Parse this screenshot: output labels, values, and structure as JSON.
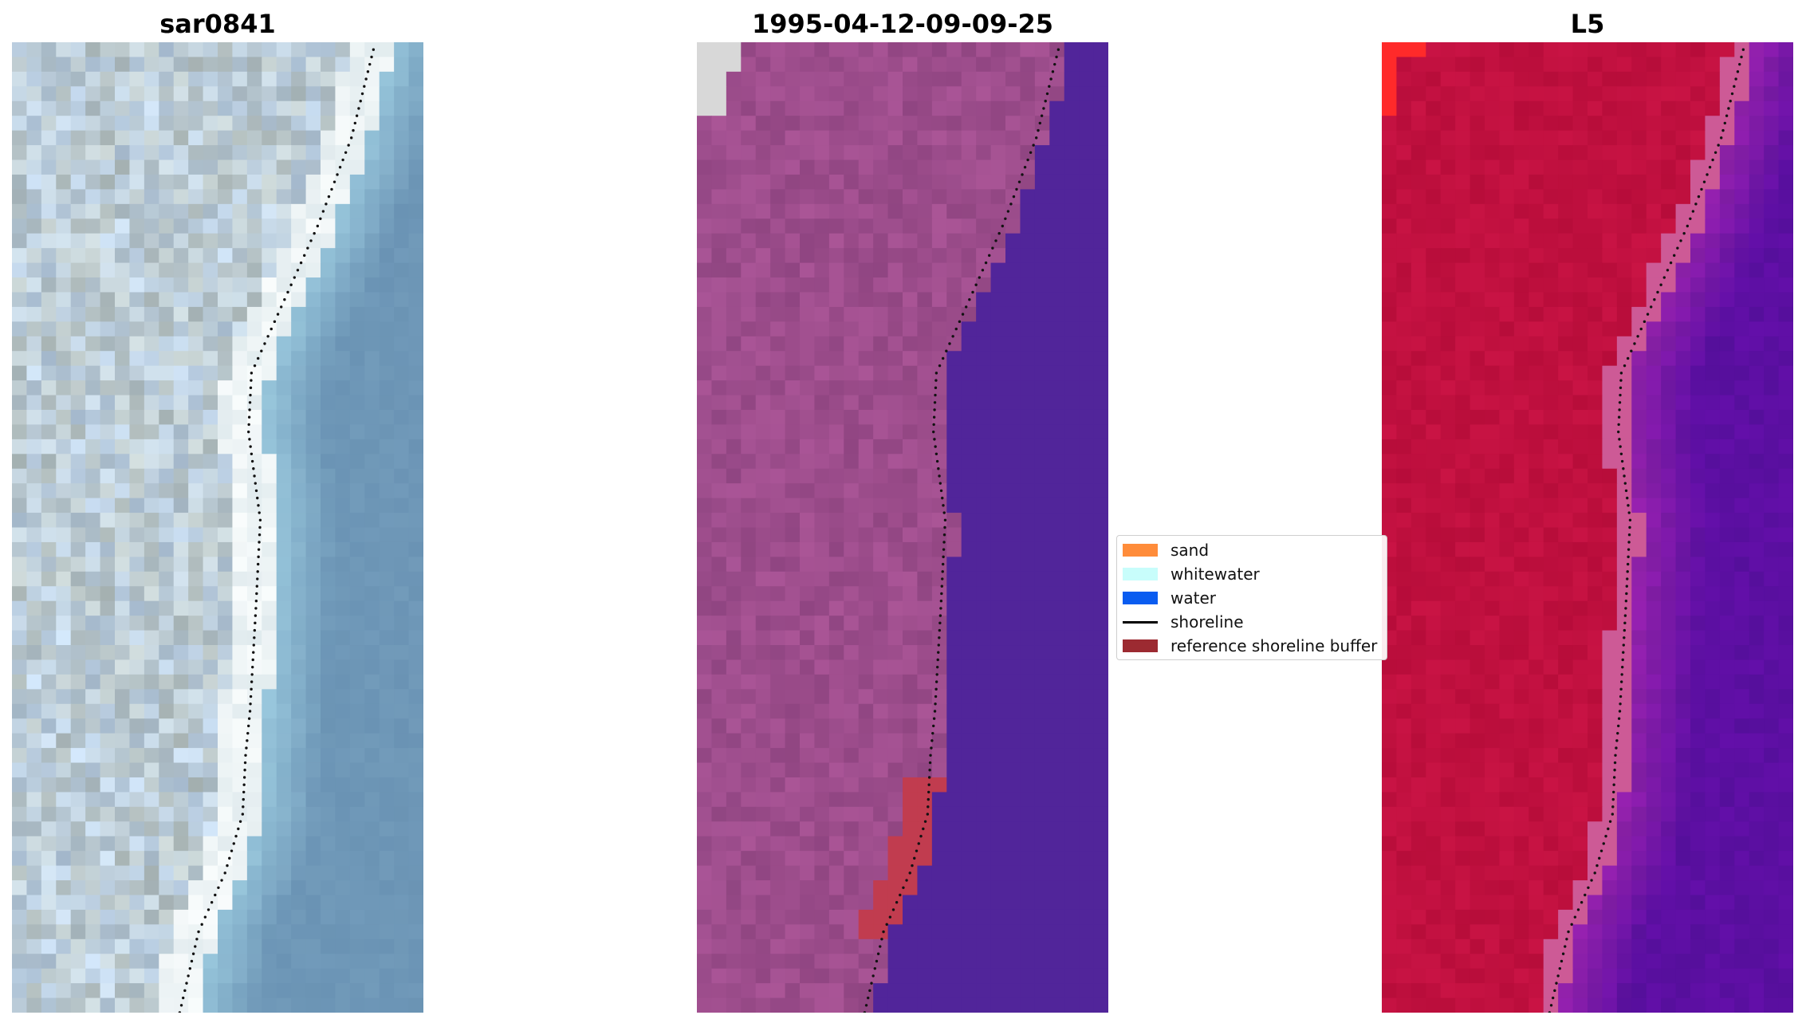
{
  "panels": [
    {
      "id": "rgb",
      "title": "sar0841"
    },
    {
      "id": "classified",
      "title": "1995-04-12-09-09-25"
    },
    {
      "id": "index",
      "title": "L5"
    }
  ],
  "legend": {
    "items": [
      {
        "label": "sand",
        "color": "#ff8c3a",
        "kind": "patch"
      },
      {
        "label": "whitewater",
        "color": "#c8fdfb",
        "kind": "patch"
      },
      {
        "label": "water",
        "color": "#0a5cf0",
        "kind": "patch"
      },
      {
        "label": "shoreline",
        "color": "#000000",
        "kind": "line"
      },
      {
        "label": "reference shoreline buffer",
        "color": "#9c2a31",
        "kind": "patch"
      }
    ]
  },
  "colors": {
    "rgb_water": "#6a93b4",
    "rgb_land": "#c6ccd6",
    "classified_land": "#9d4d8c",
    "classified_water": "#51259a",
    "classified_sand_buffer": "#c13c4f",
    "classified_corner": "#d8d8d8",
    "index_land": "#c0103f",
    "index_water": "#5c0fa2",
    "index_corner": "#ff2a2a",
    "shoreline_dots": "#111111"
  }
}
